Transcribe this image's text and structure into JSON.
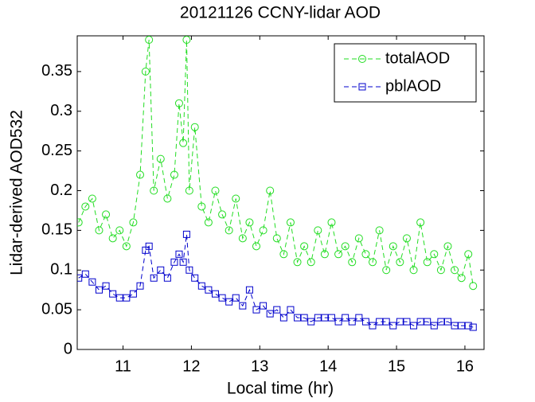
{
  "chart_data": {
    "type": "line",
    "title": "20121126 CCNY-lidar AOD",
    "xlabel": "Local time (hr)",
    "ylabel": "Lidar-derived AOD532",
    "xlim": [
      10.33,
      16.28
    ],
    "xticks": [
      11,
      12,
      13,
      14,
      15,
      16
    ],
    "ylim": [
      0,
      0.395
    ],
    "yticks": [
      0,
      0.05,
      0.1,
      0.15,
      0.2,
      0.25,
      0.3,
      0.35
    ],
    "legend": "upper right",
    "x": [
      10.35,
      10.45,
      10.55,
      10.65,
      10.75,
      10.85,
      10.95,
      11.05,
      11.15,
      11.25,
      11.33,
      11.38,
      11.45,
      11.55,
      11.65,
      11.75,
      11.82,
      11.88,
      11.93,
      11.97,
      12.05,
      12.15,
      12.25,
      12.35,
      12.45,
      12.55,
      12.65,
      12.75,
      12.85,
      12.95,
      13.05,
      13.15,
      13.25,
      13.35,
      13.45,
      13.55,
      13.65,
      13.75,
      13.85,
      13.95,
      14.05,
      14.15,
      14.25,
      14.35,
      14.45,
      14.55,
      14.65,
      14.75,
      14.85,
      14.95,
      15.05,
      15.15,
      15.25,
      15.35,
      15.45,
      15.55,
      15.65,
      15.75,
      15.85,
      15.95,
      16.05,
      16.12
    ],
    "series": [
      {
        "name": "totalAOD",
        "color": "#22dd22",
        "marker": "circle",
        "values": [
          0.16,
          0.18,
          0.19,
          0.15,
          0.17,
          0.14,
          0.15,
          0.13,
          0.16,
          0.22,
          0.35,
          0.39,
          0.2,
          0.24,
          0.19,
          0.22,
          0.31,
          0.26,
          0.39,
          0.2,
          0.28,
          0.18,
          0.16,
          0.2,
          0.17,
          0.15,
          0.19,
          0.14,
          0.16,
          0.13,
          0.15,
          0.2,
          0.14,
          0.12,
          0.16,
          0.11,
          0.13,
          0.11,
          0.15,
          0.12,
          0.16,
          0.12,
          0.13,
          0.11,
          0.14,
          0.12,
          0.11,
          0.15,
          0.1,
          0.13,
          0.11,
          0.14,
          0.1,
          0.16,
          0.11,
          0.12,
          0.1,
          0.13,
          0.1,
          0.09,
          0.12,
          0.08
        ]
      },
      {
        "name": "pblAOD",
        "color": "#0000cc",
        "marker": "square",
        "values": [
          0.09,
          0.095,
          0.085,
          0.075,
          0.08,
          0.07,
          0.065,
          0.065,
          0.07,
          0.08,
          0.125,
          0.13,
          0.09,
          0.1,
          0.09,
          0.11,
          0.12,
          0.11,
          0.145,
          0.1,
          0.09,
          0.08,
          0.075,
          0.07,
          0.065,
          0.06,
          0.065,
          0.055,
          0.075,
          0.05,
          0.055,
          0.045,
          0.05,
          0.04,
          0.05,
          0.04,
          0.04,
          0.035,
          0.04,
          0.04,
          0.04,
          0.035,
          0.04,
          0.035,
          0.04,
          0.035,
          0.03,
          0.035,
          0.035,
          0.03,
          0.035,
          0.035,
          0.03,
          0.035,
          0.035,
          0.03,
          0.035,
          0.035,
          0.03,
          0.03,
          0.03,
          0.028
        ]
      }
    ]
  }
}
